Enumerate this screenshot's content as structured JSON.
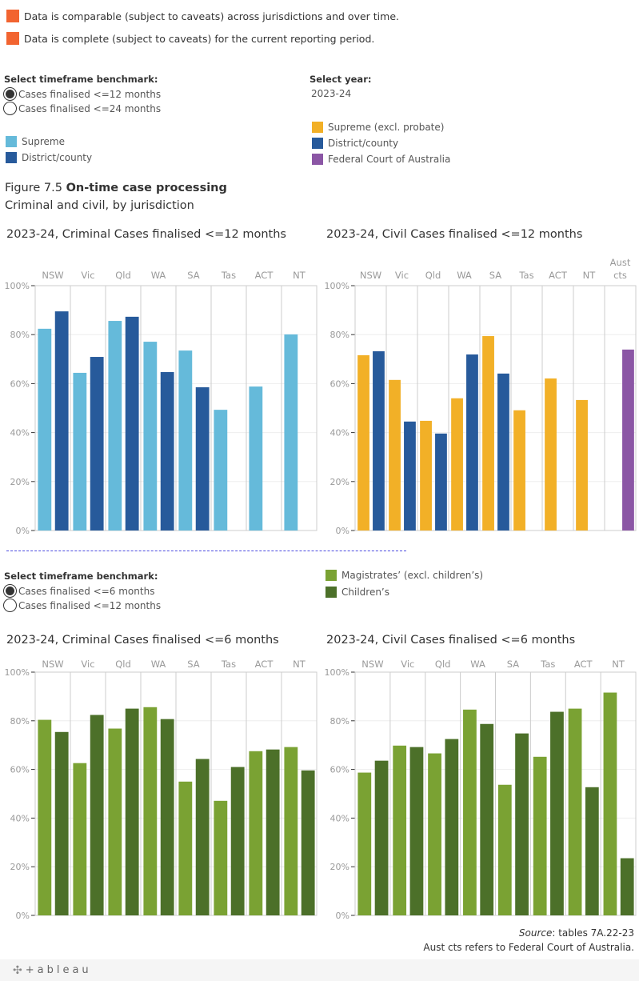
{
  "caveats": [
    "Data is comparable (subject to caveats) across jurisdictions and over time.",
    "Data is complete (subject to caveats) for the current reporting period."
  ],
  "colors": {
    "caveat": "#f26430",
    "supreme": "#65bada",
    "district": "#275a9b",
    "supreme_civil": "#f2b027",
    "federal": "#8b56a5",
    "magistrates": "#7aa233",
    "childrens": "#4c7029"
  },
  "section1": {
    "timeframe_title": "Select timeframe benchmark:",
    "timeframe_options": [
      {
        "label": "Cases finalised <=12 months",
        "selected": true
      },
      {
        "label": "Cases finalised <=24 months",
        "selected": false
      }
    ],
    "year_title": "Select year:",
    "year_value": "2023-24",
    "legend_criminal": [
      {
        "label": "Supreme",
        "color": "#65bada"
      },
      {
        "label": "District/county",
        "color": "#275a9b"
      }
    ],
    "legend_civil": [
      {
        "label": "Supreme (excl. probate)",
        "color": "#f2b027"
      },
      {
        "label": "District/county",
        "color": "#275a9b"
      },
      {
        "label": "Federal Court of Australia",
        "color": "#8b56a5"
      }
    ]
  },
  "figure": {
    "number": "Figure 7.5 ",
    "title": "On-time case processing",
    "subtitle": "Criminal and civil, by jurisdiction"
  },
  "section2": {
    "timeframe_title": "Select timeframe benchmark:",
    "timeframe_options": [
      {
        "label": "Cases finalised <=6 months",
        "selected": true
      },
      {
        "label": "Cases finalised <=12 months",
        "selected": false
      }
    ],
    "legend": [
      {
        "label": "Magistrates’ (excl. children’s)",
        "color": "#7aa233"
      },
      {
        "label": "Children’s",
        "color": "#4c7029"
      }
    ]
  },
  "source_label": "Source",
  "source_text": ": tables 7A.22-23",
  "note": "Aust cts refers to Federal Court of Australia.",
  "footer": {
    "brand": "+ableau"
  },
  "chart_data": [
    {
      "type": "bar",
      "title": "2023-24, Criminal Cases finalised <=12 months",
      "categories": [
        "NSW",
        "Vic",
        "Qld",
        "WA",
        "SA",
        "Tas",
        "ACT",
        "NT"
      ],
      "series": [
        {
          "name": "Supreme",
          "color": "#65bada",
          "values": [
            82.4,
            64.4,
            85.6,
            77.1,
            73.5,
            49.3,
            58.8,
            80.1
          ]
        },
        {
          "name": "District/county",
          "color": "#275a9b",
          "values": [
            89.5,
            70.9,
            87.3,
            64.7,
            58.5,
            null,
            null,
            null
          ]
        }
      ],
      "ylim": [
        0,
        100
      ],
      "yticks": [
        "0%",
        "20%",
        "40%",
        "60%",
        "80%",
        "100%"
      ],
      "xlabel": "",
      "ylabel": "",
      "grid": true
    },
    {
      "type": "bar",
      "title": "2023-24, Civil Cases finalised <=12 months",
      "categories": [
        "NSW",
        "Vic",
        "Qld",
        "WA",
        "SA",
        "Tas",
        "ACT",
        "NT",
        "Aust cts"
      ],
      "series": [
        {
          "name": "Supreme (excl. probate)",
          "color": "#f2b027",
          "values": [
            71.6,
            61.5,
            44.8,
            54.0,
            79.4,
            49.1,
            62.1,
            53.3,
            null
          ]
        },
        {
          "name": "District/county",
          "color": "#275a9b",
          "values": [
            73.2,
            44.5,
            39.6,
            71.9,
            64.1,
            null,
            null,
            null,
            null
          ]
        },
        {
          "name": "Federal Court of Australia",
          "color": "#8b56a5",
          "values": [
            null,
            null,
            null,
            null,
            null,
            null,
            null,
            null,
            73.9
          ]
        }
      ],
      "ylim": [
        0,
        100
      ],
      "yticks": [
        "0%",
        "20%",
        "40%",
        "60%",
        "80%",
        "100%"
      ],
      "xlabel": "",
      "ylabel": "",
      "grid": true
    },
    {
      "type": "bar",
      "title": "2023-24, Criminal Cases finalised <=6 months",
      "categories": [
        "NSW",
        "Vic",
        "Qld",
        "WA",
        "SA",
        "Tas",
        "ACT",
        "NT"
      ],
      "series": [
        {
          "name": "Magistrates’ (excl. children’s)",
          "color": "#7aa233",
          "values": [
            80.4,
            62.6,
            76.8,
            85.6,
            55.0,
            47.1,
            67.5,
            69.2
          ]
        },
        {
          "name": "Children’s",
          "color": "#4c7029",
          "values": [
            75.4,
            82.4,
            85.0,
            80.7,
            64.3,
            61.0,
            68.2,
            59.6
          ]
        }
      ],
      "ylim": [
        0,
        100
      ],
      "yticks": [
        "0%",
        "20%",
        "40%",
        "60%",
        "80%",
        "100%"
      ],
      "xlabel": "",
      "ylabel": "",
      "grid": true
    },
    {
      "type": "bar",
      "title": "2023-24, Civil Cases finalised <=6 months",
      "categories": [
        "NSW",
        "Vic",
        "Qld",
        "WA",
        "SA",
        "Tas",
        "ACT",
        "NT"
      ],
      "series": [
        {
          "name": "Magistrates’ (excl. children’s)",
          "color": "#7aa233",
          "values": [
            58.7,
            69.8,
            66.6,
            84.6,
            53.7,
            65.2,
            85.0,
            91.6
          ]
        },
        {
          "name": "Children’s",
          "color": "#4c7029",
          "values": [
            63.6,
            69.2,
            72.5,
            78.7,
            74.8,
            83.7,
            52.7,
            23.5
          ]
        }
      ],
      "ylim": [
        0,
        100
      ],
      "yticks": [
        "0%",
        "20%",
        "40%",
        "60%",
        "80%",
        "100%"
      ],
      "xlabel": "",
      "ylabel": "",
      "grid": true
    }
  ]
}
